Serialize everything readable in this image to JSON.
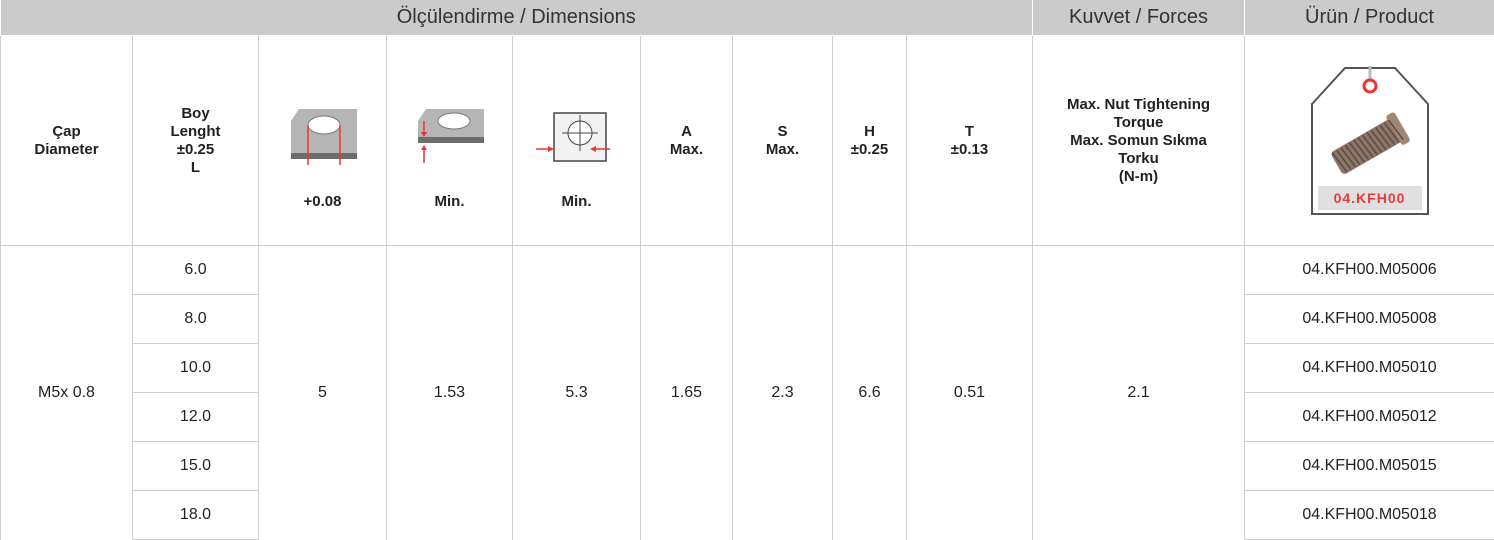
{
  "header": {
    "groups": [
      "Ölçülendirme / Dimensions",
      "Kuvvet / Forces",
      "Ürün / Product"
    ],
    "columns": [
      [
        "Çap",
        "Diameter"
      ],
      [
        "Boy",
        "Lenght",
        "±0.25",
        "L"
      ],
      [
        "+0.08"
      ],
      [
        "Min."
      ],
      [
        "Min."
      ],
      [
        "A",
        "Max."
      ],
      [
        "S",
        "Max."
      ],
      [
        "H",
        "±0.25"
      ],
      [
        "T",
        "±0.13"
      ],
      [
        "Max. Nut Tightening",
        "Torque",
        "Max. Somun Sıkma",
        "Torku",
        "(N-m)"
      ]
    ],
    "product_tag": "04.KFH00"
  },
  "table": {
    "diameter": "M5x 0.8",
    "lengths": [
      "6.0",
      "8.0",
      "10.0",
      "12.0",
      "15.0",
      "18.0"
    ],
    "shared": [
      "5",
      "1.53",
      "5.3",
      "1.65",
      "2.3",
      "6.6",
      "0.51",
      "2.1"
    ],
    "codes": [
      "04.KFH00.M05006",
      "04.KFH00.M05008",
      "04.KFH00.M05010",
      "04.KFH00.M05012",
      "04.KFH00.M05015",
      "04.KFH00.M05018"
    ]
  }
}
